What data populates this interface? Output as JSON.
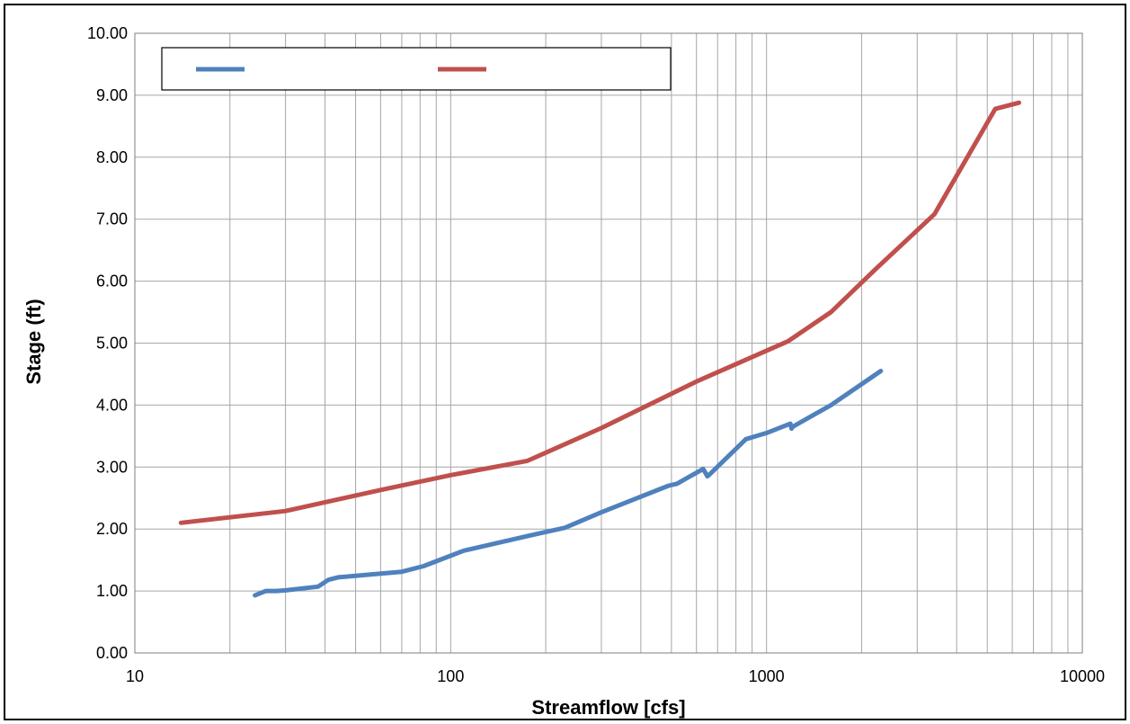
{
  "chart_data": {
    "type": "line",
    "title": "",
    "xlabel": "Streamflow [cfs]",
    "ylabel": "Stage (ft)",
    "xscale": "log",
    "xlim": [
      10,
      10000
    ],
    "ylim": [
      0,
      10
    ],
    "x_ticks": [
      "10",
      "100",
      "1000",
      "10000"
    ],
    "y_ticks": [
      "0.00",
      "1.00",
      "2.00",
      "3.00",
      "4.00",
      "5.00",
      "6.00",
      "7.00",
      "8.00",
      "9.00",
      "10.00"
    ],
    "grid": true,
    "legend_position": "top-left",
    "series": [
      {
        "name": "",
        "color": "#4F81BD",
        "x": [
          24,
          26,
          28,
          30,
          38,
          41,
          44,
          70,
          82,
          110,
          180,
          230,
          300,
          490,
          520,
          630,
          650,
          660,
          860,
          1000,
          1190,
          1200,
          1210,
          1600,
          2300
        ],
        "y": [
          0.93,
          1.0,
          1.0,
          1.01,
          1.07,
          1.18,
          1.22,
          1.31,
          1.4,
          1.65,
          1.9,
          2.02,
          2.27,
          2.7,
          2.73,
          2.97,
          2.85,
          2.88,
          3.45,
          3.55,
          3.7,
          3.62,
          3.65,
          4.0,
          4.55
        ]
      },
      {
        "name": "",
        "color": "#C0504D",
        "x": [
          14,
          30,
          60,
          100,
          175,
          300,
          600,
          1170,
          1600,
          2200,
          3400,
          5300,
          6300
        ],
        "y": [
          2.1,
          2.29,
          2.63,
          2.87,
          3.1,
          3.63,
          4.38,
          5.03,
          5.5,
          6.18,
          7.08,
          8.78,
          8.88
        ]
      }
    ]
  }
}
